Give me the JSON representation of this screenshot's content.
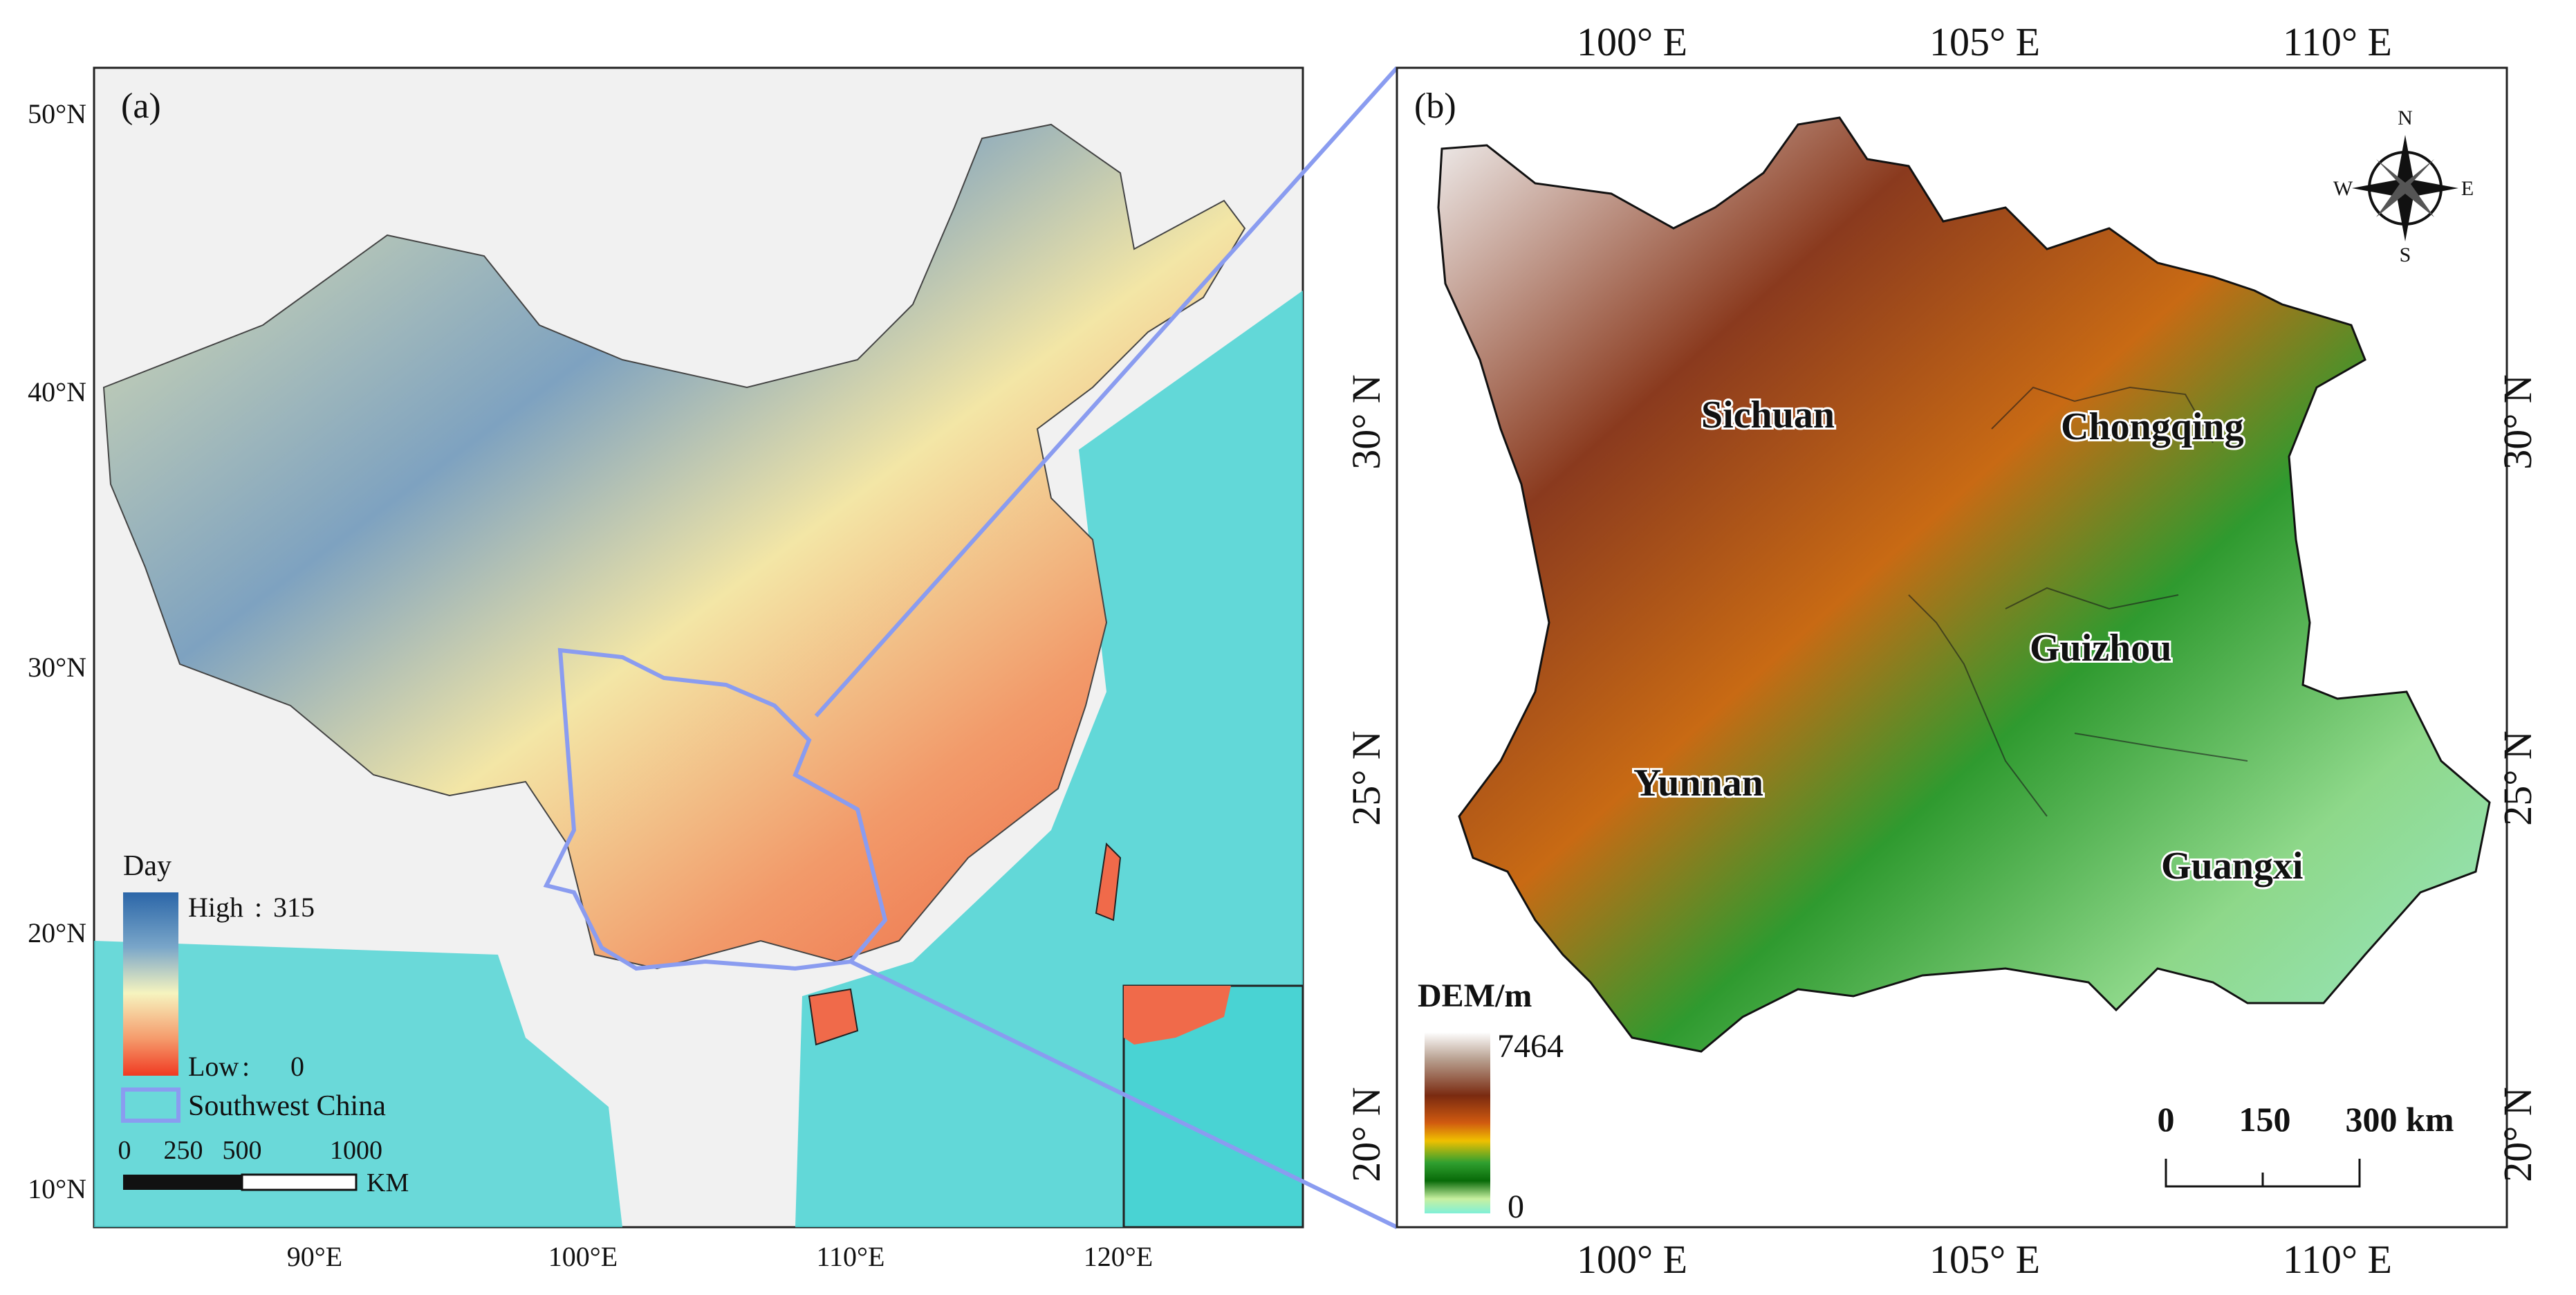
{
  "panel_a": {
    "tag": "(a)",
    "lat_labels": [
      "50°N",
      "40°N",
      "30°N",
      "20°N",
      "10°N"
    ],
    "lon_labels": [
      "90°E",
      "100°E",
      "110°E",
      "120°E"
    ],
    "legend": {
      "title": "Day",
      "high_label": "High",
      "high_value": "315",
      "low_label": "Low",
      "low_value": "0",
      "region_label": "Southwest China",
      "ramp_colors": [
        "#2b66a8",
        "#7aa6c9",
        "#f6f4bf",
        "#f59a6b",
        "#f03a22"
      ],
      "region_color": "#8a9cf0"
    },
    "scalebar": {
      "ticks": [
        "0",
        "250",
        "500",
        "1000"
      ],
      "unit": "KM"
    }
  },
  "panel_b": {
    "tag": "(b)",
    "lon_labels": [
      "100° E",
      "105° E",
      "110° E"
    ],
    "lat_labels": [
      "30° N",
      "25° N",
      "20° N"
    ],
    "provinces": [
      "Sichuan",
      "Chongqing",
      "Guizhou",
      "Yunnan",
      "Guangxi"
    ],
    "compass": {
      "n": "N",
      "s": "S",
      "e": "E",
      "w": "W"
    },
    "legend": {
      "title": "DEM/m",
      "max": "7464",
      "min": "0",
      "ramp_colors": [
        "#ffffff",
        "#b8a090",
        "#7a2a10",
        "#d05a10",
        "#f0c000",
        "#30a030",
        "#086a08",
        "#c8f0a0",
        "#80f0d8"
      ]
    },
    "scalebar": {
      "ticks": [
        "0",
        "150",
        "300 km"
      ]
    }
  },
  "colors": {
    "ocean": "#49d3d3",
    "connector": "#8a9cf0"
  }
}
